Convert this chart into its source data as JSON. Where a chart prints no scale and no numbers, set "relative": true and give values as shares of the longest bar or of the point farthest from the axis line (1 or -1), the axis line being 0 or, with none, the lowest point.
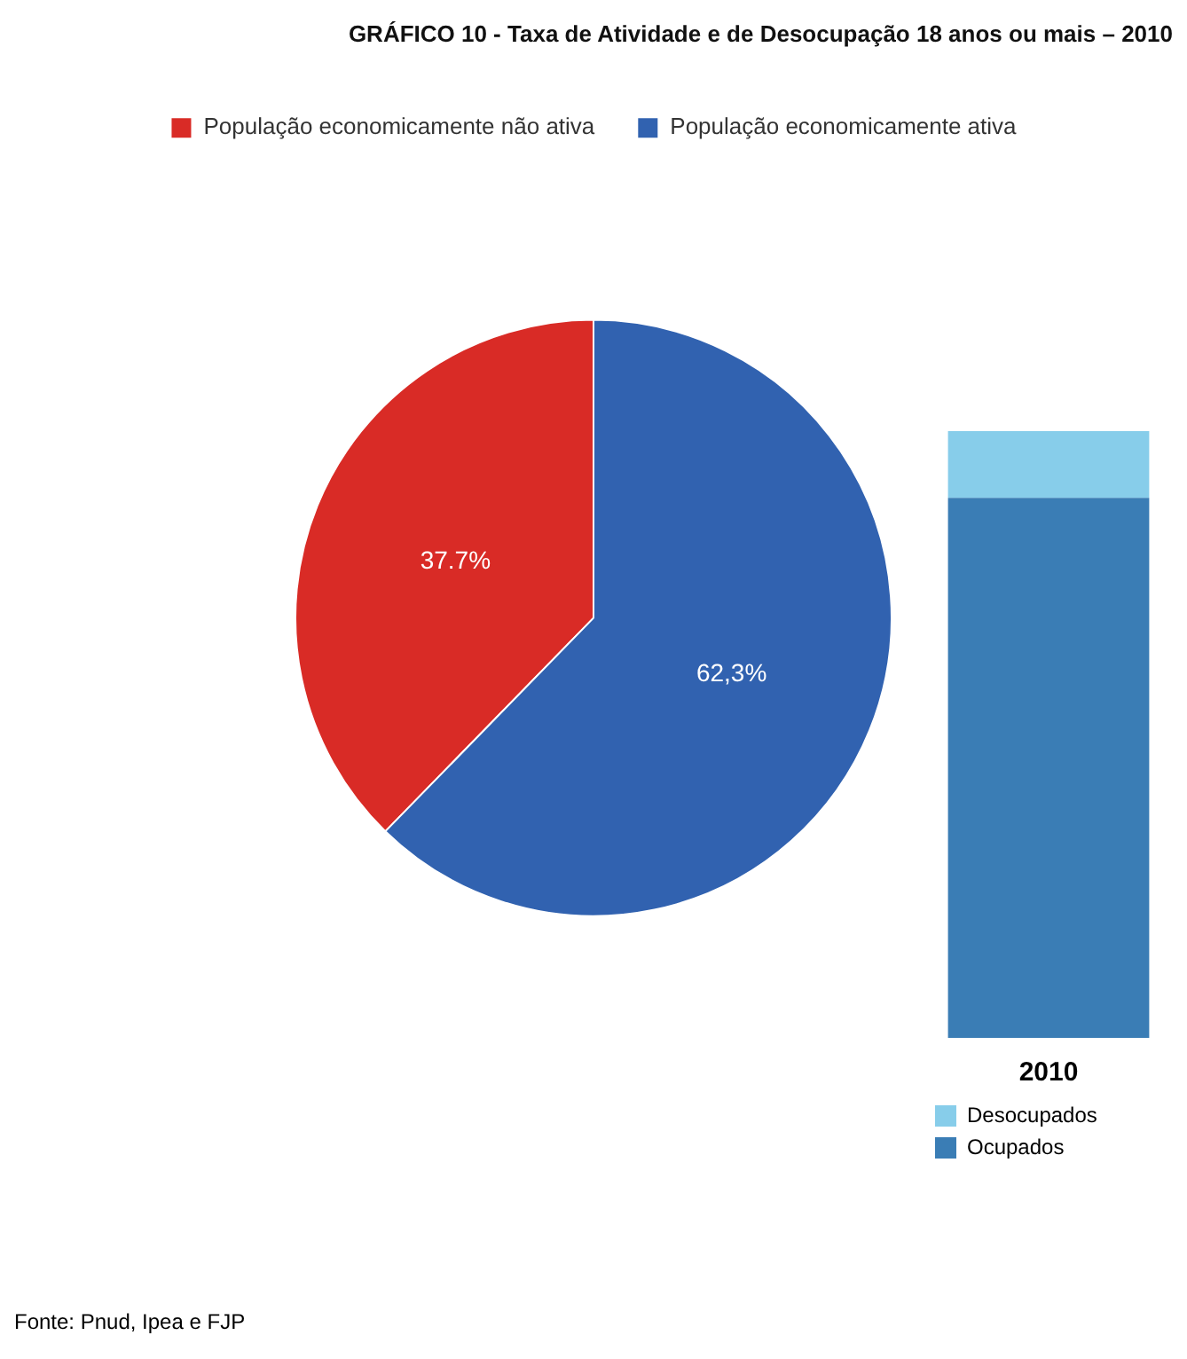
{
  "chart_data": [
    {
      "type": "pie",
      "title": "GRÁFICO 10 - Taxa de Atividade e de Desocupação 18 anos ou mais – 2010",
      "categories": [
        "População economicamente não ativa",
        "População economicamente ativa"
      ],
      "values": [
        37.7,
        62.3
      ],
      "colors": [
        "#d92b26",
        "#3162b0"
      ],
      "value_labels": [
        "37.7%",
        "62,3%"
      ],
      "legend": "top"
    },
    {
      "type": "bar",
      "categories": [
        "2010"
      ],
      "stacked": true,
      "relative": true,
      "legend": "bottom left",
      "series": [
        {
          "name": "Ocupados",
          "color": "#3a7db5",
          "values": [
            0.89
          ]
        },
        {
          "name": "Desocupados",
          "color": "#87cdea",
          "values": [
            0.11
          ]
        }
      ],
      "annotations": [
        "Fonte: Pnud, Ipea e FJP"
      ]
    }
  ]
}
